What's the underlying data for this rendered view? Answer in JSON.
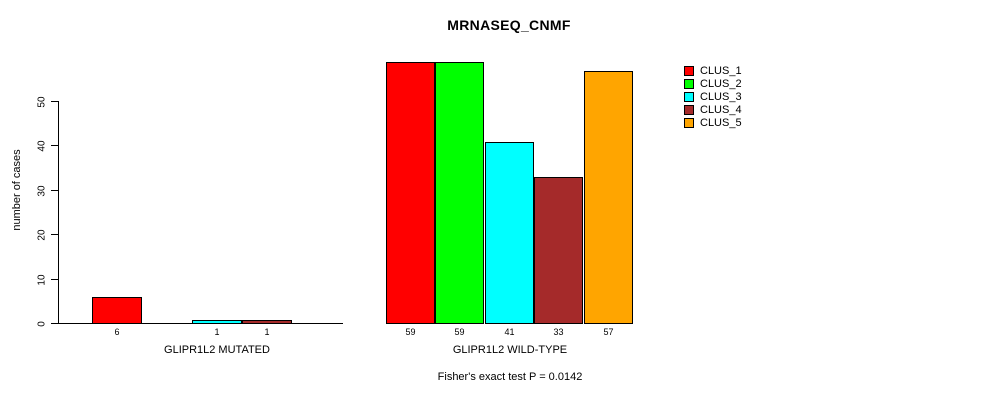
{
  "chart_data": {
    "type": "bar",
    "title": "MRNASEQ_CNMF",
    "ylabel": "number of cases",
    "xlabel": "",
    "yticks": [
      0,
      10,
      20,
      30,
      40,
      50
    ],
    "ylim": [
      0,
      60
    ],
    "grid": false,
    "legend_position": "right",
    "series": [
      {
        "name": "CLUS_1",
        "color": "#ff0000"
      },
      {
        "name": "CLUS_2",
        "color": "#00ff00"
      },
      {
        "name": "CLUS_3",
        "color": "#00ffff"
      },
      {
        "name": "CLUS_4",
        "color": "#a52a2a"
      },
      {
        "name": "CLUS_5",
        "color": "#ffa500"
      }
    ],
    "groups": [
      {
        "label": "GLIPR1L2 MUTATED",
        "values": [
          6,
          0,
          1,
          1,
          0
        ],
        "bar_labels": [
          "6",
          "",
          "1",
          "1",
          ""
        ]
      },
      {
        "label": "GLIPR1L2 WILD-TYPE",
        "values": [
          59,
          59,
          41,
          33,
          57
        ],
        "bar_labels": [
          "59",
          "59",
          "41",
          "33",
          "57"
        ]
      }
    ],
    "caption": "Fisher's exact test P = 0.0142"
  }
}
